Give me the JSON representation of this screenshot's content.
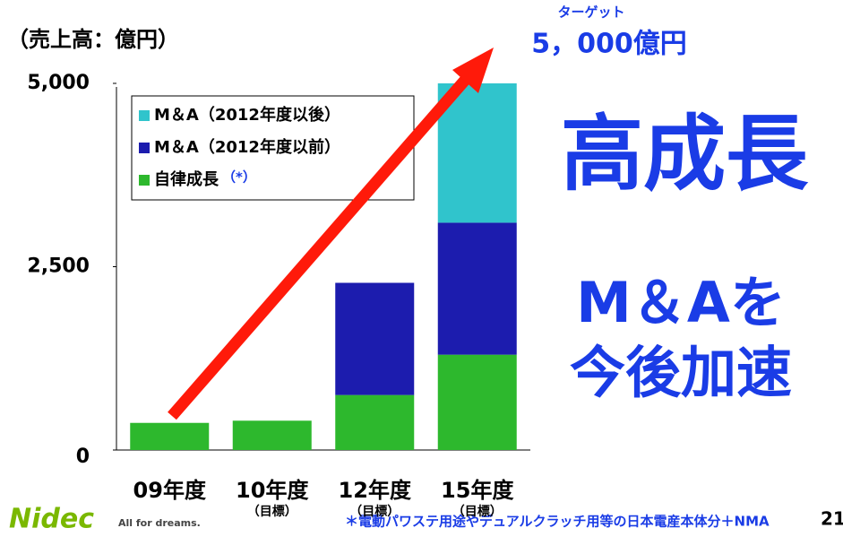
{
  "chart_data": {
    "type": "stacked_bar",
    "title": "（売上高：億円）",
    "categories": [
      "09年度",
      "10年度",
      "12年度",
      "15年度"
    ],
    "category_notes": [
      null,
      "（目標）",
      "（目標）",
      "（目標）"
    ],
    "series": [
      {
        "name": "自律成長",
        "color": "#2db82d",
        "values": [
          370,
          400,
          750,
          1300
        ]
      },
      {
        "name": "M＆A（2012年度以前）",
        "color": "#1c1cae",
        "values": [
          null,
          null,
          1530,
          1800
        ]
      },
      {
        "name": "M＆A（2012年度以後）",
        "color": "#30c4cc",
        "values": [
          null,
          null,
          null,
          1900
        ]
      }
    ],
    "legend_note": "（*）",
    "ylim": [
      0,
      5000
    ],
    "yticks": [
      0,
      {
        "value": 2500,
        "label": "2,500"
      },
      {
        "value": 5000,
        "label": "5,000"
      }
    ],
    "target_label": "ターゲット",
    "target_value": "5，000億円",
    "headline": "高成長",
    "message": [
      "M＆Aを",
      "今後加速"
    ],
    "footnote": "＊電動パワステ用途やデュアルクラッチ用等の日本電産本体分＋NMA",
    "page_number": "21",
    "logo": "Nidec",
    "tagline": "All for dreams."
  }
}
